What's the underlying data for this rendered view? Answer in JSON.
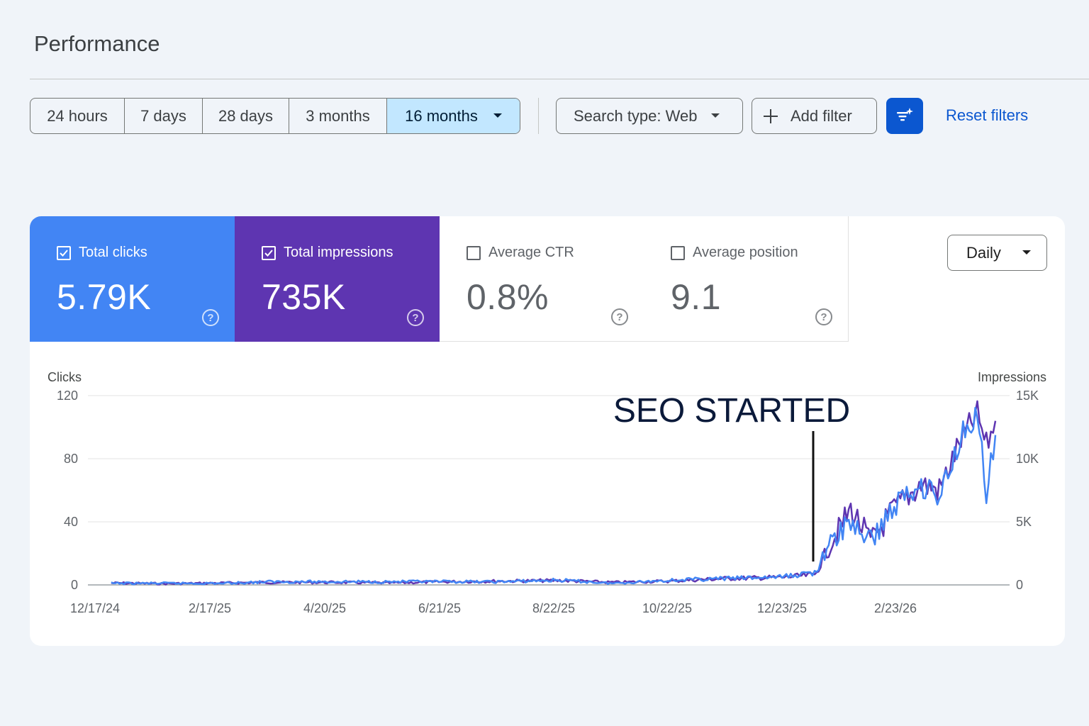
{
  "page": {
    "title": "Performance"
  },
  "toolbar": {
    "date_ranges": [
      "24 hours",
      "7 days",
      "28 days",
      "3 months",
      "16 months"
    ],
    "active_range_index": 4,
    "search_type_label": "Search type: Web",
    "add_filter_label": "Add filter",
    "reset_filters_label": "Reset filters",
    "ai_button_icon": "filter-sparkle-icon"
  },
  "metrics": [
    {
      "label": "Total clicks",
      "value": "5.79K",
      "checked": true,
      "color": "#4285f4"
    },
    {
      "label": "Total impressions",
      "value": "735K",
      "checked": true,
      "color": "#5e35b1"
    },
    {
      "label": "Average CTR",
      "value": "0.8%",
      "checked": false
    },
    {
      "label": "Average position",
      "value": "9.1",
      "checked": false
    }
  ],
  "granularity": "Daily",
  "chart_data": {
    "type": "line",
    "y_left_label": "Clicks",
    "y_right_label": "Impressions",
    "y_left_ticks": [
      "120",
      "80",
      "40",
      "0"
    ],
    "y_right_ticks": [
      "15K",
      "10K",
      "5K",
      "0"
    ],
    "ylim_left": [
      0,
      120
    ],
    "ylim_right": [
      0,
      15000
    ],
    "x_ticks": [
      "12/17/24",
      "2/17/25",
      "4/20/25",
      "6/21/25",
      "8/22/25",
      "10/22/25",
      "12/23/25",
      "2/23/26"
    ],
    "annotation": {
      "text": "SEO STARTED",
      "at": "1/15/26"
    },
    "grid": true,
    "series": [
      {
        "name": "Total impressions",
        "color": "#5e35b1",
        "axis": "right",
        "points": [
          [
            "12/17/24",
            150
          ],
          [
            "1/15/25",
            100
          ],
          [
            "2/17/25",
            150
          ],
          [
            "3/15/25",
            200
          ],
          [
            "4/20/25",
            200
          ],
          [
            "5/20/25",
            150
          ],
          [
            "6/21/25",
            250
          ],
          [
            "7/20/25",
            300
          ],
          [
            "8/22/25",
            350
          ],
          [
            "9/20/25",
            200
          ],
          [
            "10/22/25",
            300
          ],
          [
            "11/20/25",
            500
          ],
          [
            "12/23/25",
            600
          ],
          [
            "1/10/26",
            800
          ],
          [
            "1/20/26",
            3500
          ],
          [
            "1/30/26",
            6000
          ],
          [
            "2/10/26",
            3500
          ],
          [
            "2/23/26",
            6000
          ],
          [
            "3/10/26",
            8000
          ],
          [
            "3/20/26",
            7500
          ],
          [
            "4/1/26",
            11500
          ],
          [
            "4/10/26",
            13500
          ],
          [
            "4/15/26",
            11000
          ],
          [
            "4/20/26",
            13000
          ]
        ]
      },
      {
        "name": "Total clicks",
        "color": "#4285f4",
        "axis": "left",
        "points": [
          [
            "12/17/24",
            1
          ],
          [
            "1/15/25",
            1
          ],
          [
            "2/17/25",
            1
          ],
          [
            "3/15/25",
            2
          ],
          [
            "4/20/25",
            2
          ],
          [
            "5/20/25",
            2
          ],
          [
            "6/21/25",
            2
          ],
          [
            "7/20/25",
            2
          ],
          [
            "8/22/25",
            3
          ],
          [
            "9/20/25",
            1
          ],
          [
            "10/22/25",
            3
          ],
          [
            "11/20/25",
            4
          ],
          [
            "12/23/25",
            5
          ],
          [
            "1/10/26",
            8
          ],
          [
            "1/20/26",
            28
          ],
          [
            "1/30/26",
            40
          ],
          [
            "2/10/26",
            28
          ],
          [
            "2/23/26",
            50
          ],
          [
            "3/10/26",
            65
          ],
          [
            "3/20/26",
            55
          ],
          [
            "4/1/26",
            95
          ],
          [
            "4/10/26",
            110
          ],
          [
            "4/15/26",
            55
          ],
          [
            "4/20/26",
            95
          ]
        ]
      }
    ]
  }
}
